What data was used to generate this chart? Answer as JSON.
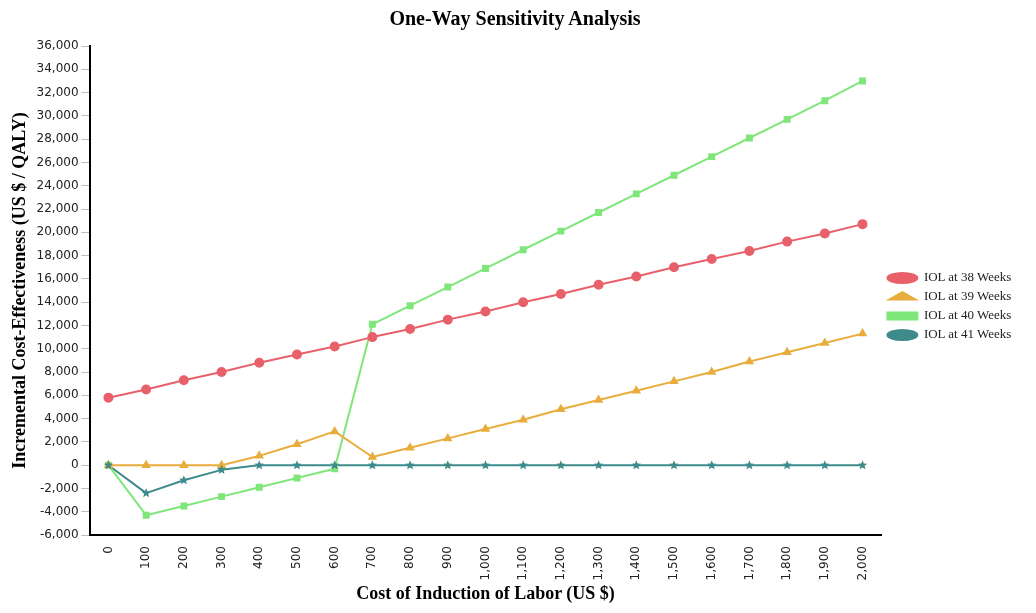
{
  "chart_data": {
    "type": "line",
    "title": "One-Way Sensitivity Analysis",
    "xlabel": "Cost of Induction of Labor (US $)",
    "ylabel": "Incremental Cost-Effectiveness (US $ / QALY)",
    "categories": [
      "0",
      "100",
      "200",
      "300",
      "400",
      "500",
      "600",
      "700",
      "800",
      "900",
      "1,000",
      "1,100",
      "1,200",
      "1,300",
      "1,400",
      "1,500",
      "1,600",
      "1,700",
      "1,800",
      "1,900",
      "2,000"
    ],
    "series": [
      {
        "name": "IOL at 38 Weeks",
        "color": "#e8606a",
        "marker": "circle",
        "values": [
          5800,
          6500,
          7300,
          8000,
          8800,
          9500,
          10200,
          11000,
          11700,
          12500,
          13200,
          14000,
          14700,
          15500,
          16200,
          17000,
          17700,
          18400,
          19200,
          19900,
          20700
        ]
      },
      {
        "name": "IOL at 39 Weeks",
        "color": "#e8ad3c",
        "marker": "triangle",
        "values": [
          0,
          0,
          0,
          0,
          800,
          1800,
          2900,
          700,
          1500,
          2300,
          3100,
          3900,
          4800,
          5600,
          6400,
          7200,
          8000,
          8900,
          9700,
          10500,
          11300
        ]
      },
      {
        "name": "IOL at 40 Weeks",
        "color": "#7fe67a",
        "marker": "square",
        "values": [
          0,
          -4300,
          -3500,
          -2700,
          -1900,
          -1100,
          -300,
          12100,
          13700,
          15300,
          16900,
          18500,
          20100,
          21700,
          23300,
          24900,
          26500,
          28100,
          29700,
          31300,
          33000
        ]
      },
      {
        "name": "IOL at 41 Weeks",
        "color": "#3f8a8a",
        "marker": "star",
        "values": [
          0,
          -2400,
          -1300,
          -400,
          0,
          0,
          0,
          0,
          0,
          0,
          0,
          0,
          0,
          0,
          0,
          0,
          0,
          0,
          0,
          0,
          0
        ]
      }
    ],
    "ylim": [
      -6000,
      36000
    ],
    "yticks": [
      {
        "value": -6000,
        "label": "-6,000"
      },
      {
        "value": -4000,
        "label": "-4,000"
      },
      {
        "value": -2000,
        "label": "-2,000"
      },
      0,
      {
        "value": 2000,
        "label": "2,000"
      },
      {
        "value": 4000,
        "label": "4,000"
      },
      {
        "value": 6000,
        "label": "6,000"
      },
      {
        "value": 8000,
        "label": "8,000"
      },
      {
        "value": 10000,
        "label": "10,000"
      },
      {
        "value": 12000,
        "label": "12,000"
      },
      {
        "value": 14000,
        "label": "14,000"
      },
      {
        "value": 16000,
        "label": "16,000"
      },
      {
        "value": 18000,
        "label": "18,000"
      },
      {
        "value": 20000,
        "label": "20,000"
      },
      {
        "value": 22000,
        "label": "22,000"
      },
      {
        "value": 24000,
        "label": "24,000"
      },
      {
        "value": 26000,
        "label": "26,000"
      },
      {
        "value": 28000,
        "label": "28,000"
      },
      {
        "value": 30000,
        "label": "30,000"
      },
      {
        "value": 32000,
        "label": "32,000"
      },
      {
        "value": 34000,
        "label": "34,000"
      },
      {
        "value": 36000,
        "label": "36,000"
      }
    ],
    "grid": false,
    "legend": "right",
    "line_style": "solid"
  }
}
